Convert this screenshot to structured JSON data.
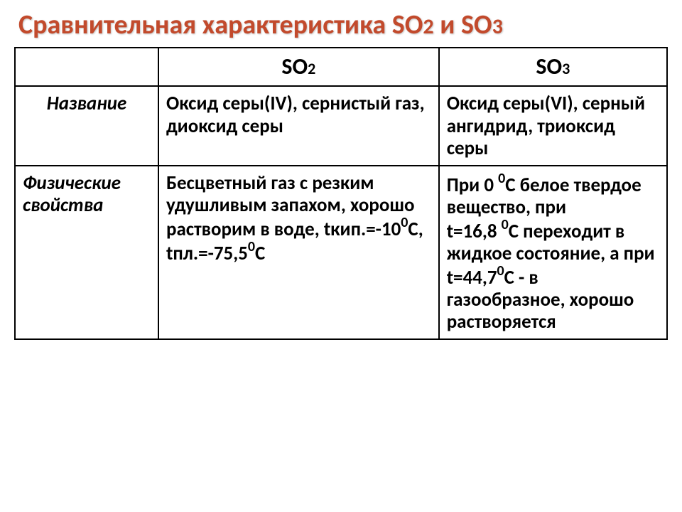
{
  "title": {
    "prefix": "Сравнительная характеристика SO",
    "sub1": "2",
    "mid": " и SO",
    "sub2": "3",
    "color": "#c24a2c",
    "shadow": "1px 1px 2px rgba(0,0,0,0.25)"
  },
  "table": {
    "columns": [
      {
        "id": "prop",
        "width_pct": 22
      },
      {
        "id": "so2",
        "width_pct": 43
      },
      {
        "id": "so3",
        "width_pct": 35
      }
    ],
    "border_color": "#000000",
    "body_fontsize": 27,
    "header_fontsize": 32,
    "header": {
      "col1": "",
      "so2_main": "SO",
      "so2_sub": "2",
      "so3_main": "SO",
      "so3_sub": "3"
    },
    "rows": [
      {
        "label": "Название",
        "so2": "Оксид серы(IV), сернистый газ, диоксид серы",
        "so3": "Оксид серы(VI), серный ангидрид, триоксид серы"
      },
      {
        "label": "Физические свойства",
        "so2_parts": {
          "p1": "Бесцветный газ с резким удушливым запахом, хорошо растворим в воде, tкип.=-10",
          "deg1": "0",
          "p2": "С, tпл.=-75,5",
          "deg2": "0",
          "p3": "С"
        },
        "so3_parts": {
          "p1": "При 0 ",
          "deg1": "0",
          "p2": "С белое твердое вещество, при",
          "br1": "",
          "p3": "t=16,8 ",
          "deg2": "0",
          "p4": "С переходит в жидкое состояние, а при t=44,7",
          "deg3": "0",
          "p5": "С - в газообразное, хорошо растворяется"
        }
      }
    ]
  },
  "watermark": ""
}
